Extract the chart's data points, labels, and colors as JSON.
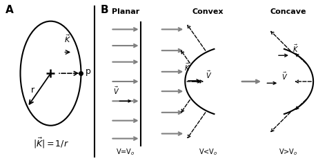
{
  "bg_color": "#ffffff",
  "panel_A_label": "A",
  "panel_B_label": "B",
  "planar_title": "Planar",
  "convex_title": "Convex",
  "concave_title": "Concave",
  "planar_bottom": "V=V$_o$",
  "convex_bottom": "V<V$_o$",
  "concave_bottom": "V>V$_o$",
  "formula": "$|\\vec{K}|=1/r$"
}
